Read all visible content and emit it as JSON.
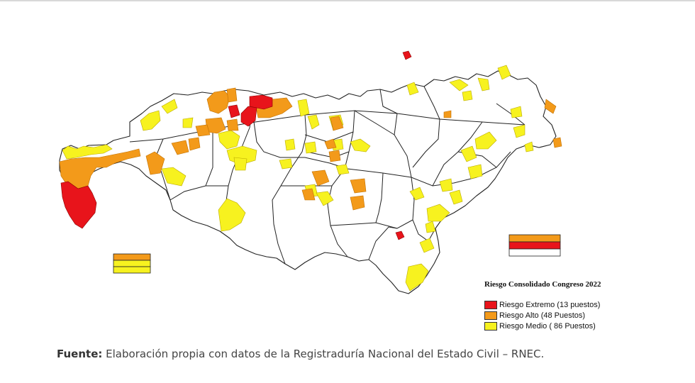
{
  "colors": {
    "extreme": "#e8141b",
    "high": "#f39a1a",
    "medium": "#f7f21f",
    "outline": "#222222",
    "legend_title": "#111111"
  },
  "map": {
    "extreme_rows": [
      {
        "level": "high"
      },
      {
        "level": "extreme"
      },
      {
        "level": "none"
      }
    ],
    "high_rows": [
      {
        "level": "high"
      },
      {
        "level": "medium"
      },
      {
        "level": "medium"
      }
    ]
  },
  "legend": {
    "title": "Riesgo Consolidado Congreso 2022",
    "items": [
      {
        "label": "Riesgo Extremo (13 puestos)",
        "color": "#e8141b"
      },
      {
        "label": "Riesgo Alto (48 Puestos)",
        "color": "#f39a1a"
      },
      {
        "label": "Riesgo Medio ( 86 Puestos)",
        "color": "#f7f21f"
      }
    ]
  },
  "source": {
    "label": "Fuente:",
    "text": "Elaboración propia con datos de la Registraduría Nacional del Estado Civil – RNEC."
  }
}
